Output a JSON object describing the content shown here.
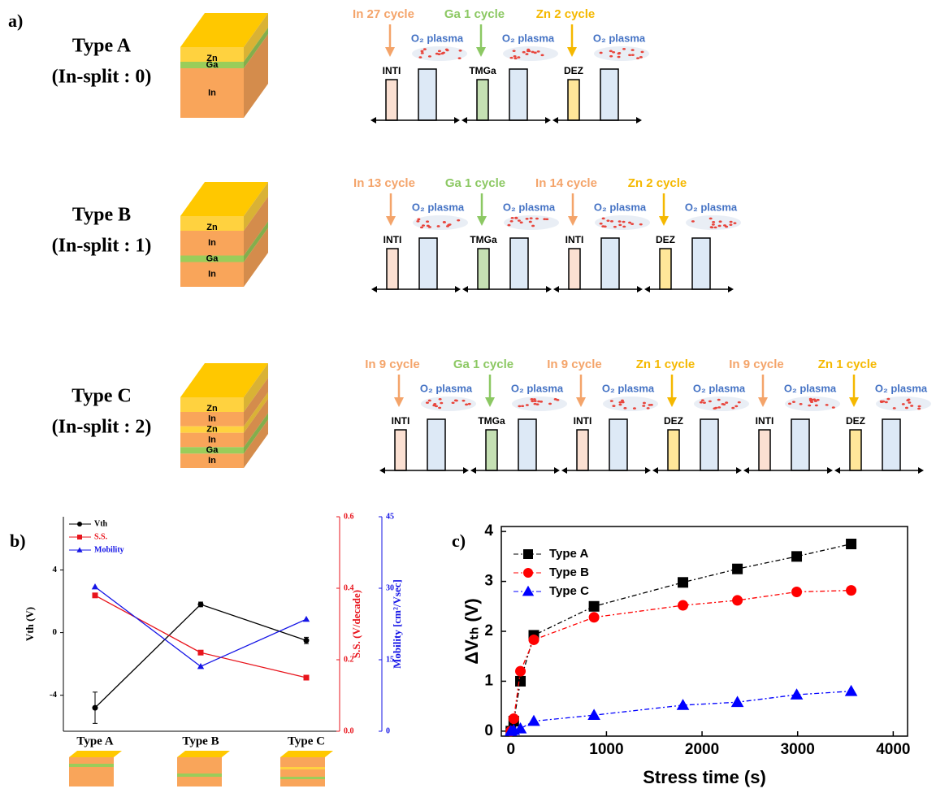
{
  "panel_a": {
    "label": "a)",
    "plasma_label": "O₂ plasma",
    "rows": [
      {
        "type": "Type A",
        "split": "(In-split : 0)",
        "layers": [
          {
            "label": "Zn",
            "color": "#ffd23f"
          },
          {
            "label": "Ga",
            "color": "#9acd5a"
          },
          {
            "label": "In",
            "color": "#f9a55a"
          }
        ],
        "steps": [
          {
            "cycle": "In 27 cycle",
            "precursor": "INTI",
            "color": "#f4a46a",
            "fill": "#fbe0d2"
          },
          {
            "cycle": "Ga 1 cycle",
            "precursor": "TMGa",
            "color": "#8cc863",
            "fill": "#c5e0b3"
          },
          {
            "cycle": "Zn 2 cycle",
            "precursor": "DEZ",
            "color": "#f5b800",
            "fill": "#ffe699"
          }
        ]
      },
      {
        "type": "Type B",
        "split": "(In-split : 1)",
        "layers": [
          {
            "label": "Zn",
            "color": "#ffd23f"
          },
          {
            "label": "In",
            "color": "#f9a55a"
          },
          {
            "label": "Ga",
            "color": "#9acd5a"
          },
          {
            "label": "In",
            "color": "#f9a55a"
          }
        ],
        "steps": [
          {
            "cycle": "In 13 cycle",
            "precursor": "INTI",
            "color": "#f4a46a",
            "fill": "#fbe0d2"
          },
          {
            "cycle": "Ga 1 cycle",
            "precursor": "TMGa",
            "color": "#8cc863",
            "fill": "#c5e0b3"
          },
          {
            "cycle": "In 14 cycle",
            "precursor": "INTI",
            "color": "#f4a46a",
            "fill": "#fbe0d2"
          },
          {
            "cycle": "Zn 2 cycle",
            "precursor": "DEZ",
            "color": "#f5b800",
            "fill": "#ffe699"
          }
        ]
      },
      {
        "type": "Type C",
        "split": "(In-split : 2)",
        "layers": [
          {
            "label": "Zn",
            "color": "#ffd23f"
          },
          {
            "label": "In",
            "color": "#f9a55a"
          },
          {
            "label": "Zn",
            "color": "#ffd23f"
          },
          {
            "label": "In",
            "color": "#f9a55a"
          },
          {
            "label": "Ga",
            "color": "#9acd5a"
          },
          {
            "label": "In",
            "color": "#f9a55a"
          }
        ],
        "steps": [
          {
            "cycle": "In 9 cycle",
            "precursor": "INTI",
            "color": "#f4a46a",
            "fill": "#fbe0d2"
          },
          {
            "cycle": "Ga 1 cycle",
            "precursor": "TMGa",
            "color": "#8cc863",
            "fill": "#c5e0b3"
          },
          {
            "cycle": "In 9 cycle",
            "precursor": "INTI",
            "color": "#f4a46a",
            "fill": "#fbe0d2"
          },
          {
            "cycle": "Zn 1 cycle",
            "precursor": "DEZ",
            "color": "#f5b800",
            "fill": "#ffe699"
          },
          {
            "cycle": "In 9 cycle",
            "precursor": "INTI",
            "color": "#f4a46a",
            "fill": "#fbe0d2"
          },
          {
            "cycle": "Zn 1 cycle",
            "precursor": "DEZ",
            "color": "#f5b800",
            "fill": "#ffe699"
          }
        ]
      }
    ]
  },
  "chart_data": [
    {
      "type": "line",
      "panel_label": "b)",
      "categories": [
        "Type A",
        "Type B",
        "Type C"
      ],
      "ylabel": "Vth (V)",
      "ylim": [
        -6.3,
        7.4
      ],
      "yticks": [
        4,
        0,
        -4
      ],
      "y2label": "S.S. (V/decade)",
      "y2lim": [
        0,
        0.6
      ],
      "y2ticks": [
        {
          "value": 0,
          "label": "0.0"
        },
        0.2,
        0.4,
        0.6
      ],
      "y3label": "Mobility [cm²/Vsec]",
      "y3lim": [
        0,
        45
      ],
      "y3ticks": [
        0,
        15,
        30,
        45
      ],
      "legend": "upper left",
      "series": [
        {
          "name": "Vth",
          "color": "#000000",
          "marker": "circle",
          "values": [
            -4.8,
            1.8,
            -0.5
          ],
          "errors": [
            1.0,
            0.15,
            0.2
          ]
        },
        {
          "name": "S.S.",
          "color": "#e8141c",
          "marker": "square",
          "axis": "y2",
          "values": [
            0.38,
            0.22,
            0.15
          ]
        },
        {
          "name": "Mobility",
          "color": "#1515e6",
          "marker": "triangle",
          "axis": "y3",
          "values": [
            30.3,
            13.6,
            23.5
          ]
        }
      ]
    },
    {
      "type": "line",
      "panel_label": "c)",
      "xlabel": "Stress time (s)",
      "ylabel": "ΔVₜₕ (V)",
      "xlim": [
        -100,
        4150
      ],
      "xticks": [
        0,
        1000,
        2000,
        3000,
        4000
      ],
      "ylim": [
        -0.1,
        4.1
      ],
      "yticks": [
        0,
        1,
        2,
        3,
        4
      ],
      "legend": "upper left",
      "x": [
        0,
        30,
        100,
        240,
        870,
        1800,
        2370,
        2990,
        3560
      ],
      "series": [
        {
          "name": "Type A",
          "color": "#000000",
          "marker": "square",
          "values": [
            0,
            0.2,
            1.0,
            1.92,
            2.5,
            2.98,
            3.25,
            3.5,
            3.75
          ]
        },
        {
          "name": "Type B",
          "color": "#ff0000",
          "marker": "circle",
          "values": [
            0,
            0.25,
            1.2,
            1.83,
            2.28,
            2.52,
            2.62,
            2.79,
            2.82
          ]
        },
        {
          "name": "Type C",
          "color": "#0000ff",
          "marker": "triangle",
          "values": [
            0,
            0.02,
            0.05,
            0.2,
            0.32,
            0.52,
            0.58,
            0.73,
            0.8
          ]
        }
      ]
    }
  ]
}
